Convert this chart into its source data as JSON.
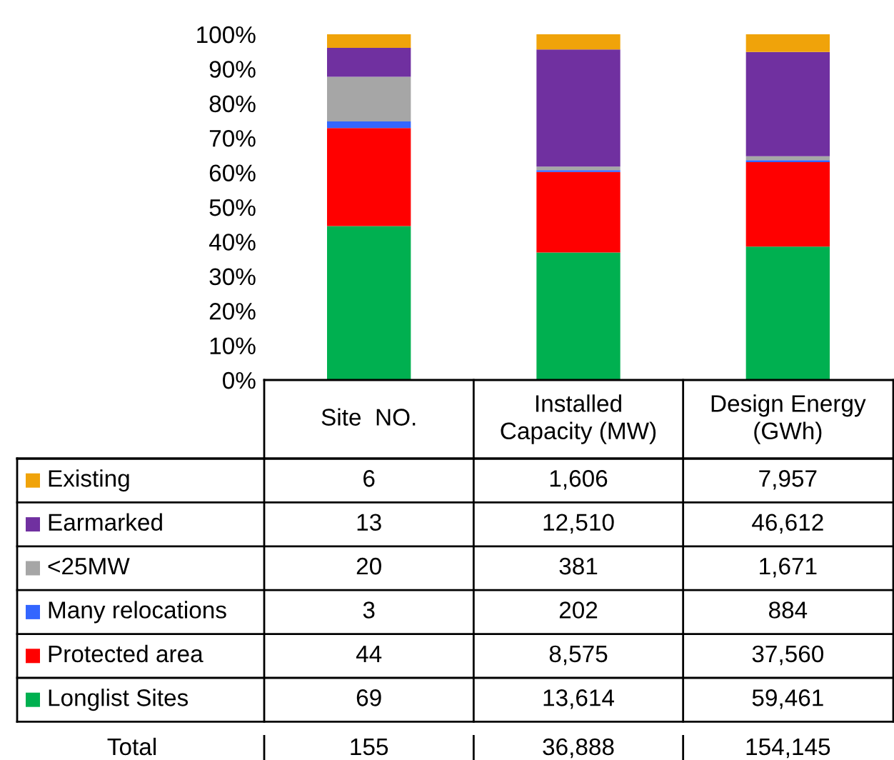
{
  "chart_data": {
    "type": "bar",
    "stacked": true,
    "categories": [
      "Site  NO.",
      "Installed\nCapacity (MW)",
      "Design Energy\n(GWh)"
    ],
    "ylim": [
      0,
      100
    ],
    "yticks": [
      {
        "value": 0,
        "label": "0%"
      },
      {
        "value": 10,
        "label": "10%"
      },
      {
        "value": 20,
        "label": "20%"
      },
      {
        "value": 30,
        "label": "30%"
      },
      {
        "value": 40,
        "label": "40%"
      },
      {
        "value": 50,
        "label": "50%"
      },
      {
        "value": 60,
        "label": "60%"
      },
      {
        "value": 70,
        "label": "70%"
      },
      {
        "value": 80,
        "label": "80%"
      },
      {
        "value": 90,
        "label": "90%"
      },
      {
        "value": 100,
        "label": "100%"
      }
    ],
    "grid": false,
    "legend": "bottom",
    "series": [
      {
        "name": "Longlist Sites",
        "color": "#00b050",
        "values": [
          44.5,
          36.9,
          38.6
        ]
      },
      {
        "name": "Protected area",
        "color": "#ff0000",
        "values": [
          28.4,
          23.3,
          24.4
        ]
      },
      {
        "name": "Many relocations",
        "color": "#3366ff",
        "values": [
          1.9,
          0.5,
          0.6
        ]
      },
      {
        "name": "<25MW",
        "color": "#a6a6a6",
        "values": [
          12.9,
          1.0,
          1.1
        ]
      },
      {
        "name": "Earmarked",
        "color": "#7030a0",
        "values": [
          8.4,
          33.9,
          30.2
        ]
      },
      {
        "name": "Existing",
        "color": "#f0a30a",
        "values": [
          3.9,
          4.4,
          5.1
        ]
      }
    ],
    "annotations": [
      "6",
      "1,606",
      "7,957",
      "13",
      "12,510",
      "46,612",
      "20",
      "381",
      "1,671",
      "3",
      "202",
      "884",
      "44",
      "8,575",
      "37,560",
      "69",
      "13,614",
      "59,461",
      "Total",
      "155",
      "36,888",
      "154,145"
    ]
  }
}
